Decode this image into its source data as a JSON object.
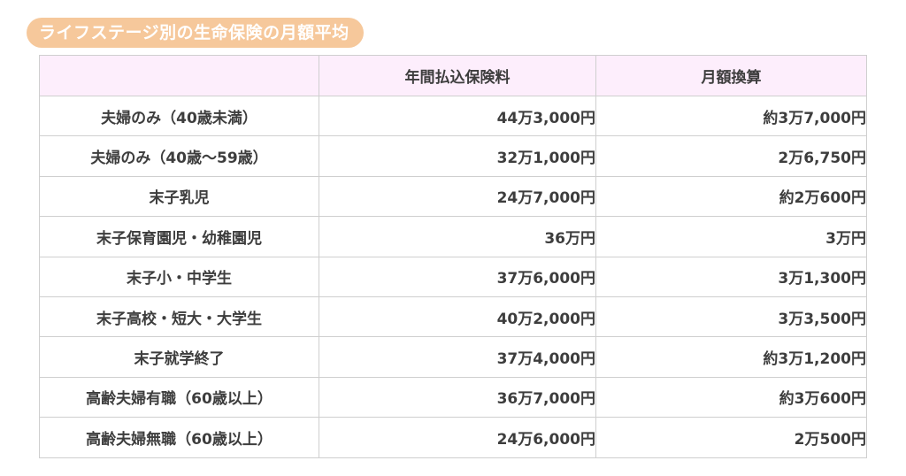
{
  "title": "ライフステージ別の生命保険の月額平均",
  "table": {
    "headers": [
      "",
      "年間払込保険料",
      "月額換算"
    ],
    "rows": [
      {
        "stage": "夫婦のみ（40歳未満）",
        "annual": "44万3,000円",
        "monthly": "約3万7,000円"
      },
      {
        "stage": "夫婦のみ（40歳〜59歳）",
        "annual": "32万1,000円",
        "monthly": "2万6,750円"
      },
      {
        "stage": "末子乳児",
        "annual": "24万7,000円",
        "monthly": "約2万600円"
      },
      {
        "stage": "末子保育園児・幼稚園児",
        "annual": "36万円",
        "monthly": "3万円"
      },
      {
        "stage": "末子小・中学生",
        "annual": "37万6,000円",
        "monthly": "3万1,300円"
      },
      {
        "stage": "末子高校・短大・大学生",
        "annual": "40万2,000円",
        "monthly": "3万3,500円"
      },
      {
        "stage": "末子就学終了",
        "annual": "37万4,000円",
        "monthly": "約3万1,200円"
      },
      {
        "stage": "高齢夫婦有職（60歳以上）",
        "annual": "36万7,000円",
        "monthly": "約3万600円"
      },
      {
        "stage": "高齢夫婦無職（60歳以上）",
        "annual": "24万6,000円",
        "monthly": "2万500円"
      }
    ]
  },
  "colors": {
    "title_bg": "#f6c89b",
    "header_bg": "#fdeefc",
    "border": "#cfcfcf",
    "text": "#3d3d3d"
  }
}
